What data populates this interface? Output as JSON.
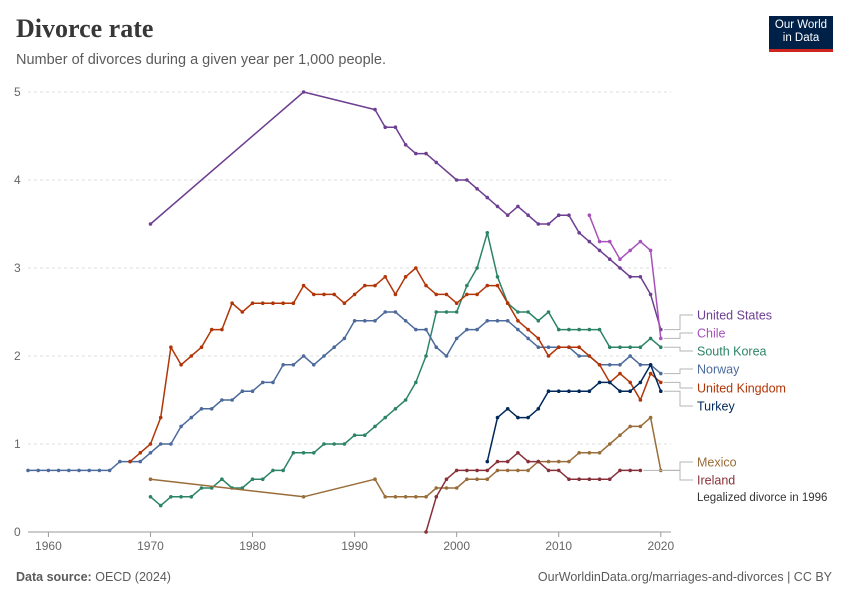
{
  "header": {
    "title": "Divorce rate",
    "subtitle": "Number of divorces during a given year per 1,000 people."
  },
  "logo": {
    "line1": "Our World",
    "line2": "in Data"
  },
  "footer": {
    "source_label": "Data source:",
    "source_value": "OECD (2024)",
    "link": "OurWorldinData.org/marriages-and-divorces | CC BY"
  },
  "chart_data": {
    "type": "line",
    "title": "Divorce rate",
    "subtitle": "Number of divorces during a given year per 1,000 people.",
    "xlim": [
      1958,
      2021
    ],
    "ylim": [
      0,
      5
    ],
    "xticks": [
      1960,
      1970,
      1980,
      1990,
      2000,
      2010,
      2020
    ],
    "yticks": [
      0,
      1,
      2,
      3,
      4,
      5
    ],
    "grid": true,
    "series": [
      {
        "name": "United States",
        "color": "#6d3e91",
        "points": [
          [
            1970,
            3.5
          ],
          [
            1985,
            5.0
          ],
          [
            1992,
            4.8
          ],
          [
            1993,
            4.6
          ],
          [
            1994,
            4.6
          ],
          [
            1995,
            4.4
          ],
          [
            1996,
            4.3
          ],
          [
            1997,
            4.3
          ],
          [
            1998,
            4.2
          ],
          [
            2000,
            4.0
          ],
          [
            2001,
            4.0
          ],
          [
            2002,
            3.9
          ],
          [
            2003,
            3.8
          ],
          [
            2004,
            3.7
          ],
          [
            2005,
            3.6
          ],
          [
            2006,
            3.7
          ],
          [
            2007,
            3.6
          ],
          [
            2008,
            3.5
          ],
          [
            2009,
            3.5
          ],
          [
            2010,
            3.6
          ],
          [
            2011,
            3.6
          ],
          [
            2012,
            3.4
          ],
          [
            2013,
            3.3
          ],
          [
            2014,
            3.2
          ],
          [
            2015,
            3.1
          ],
          [
            2016,
            3.0
          ],
          [
            2017,
            2.9
          ],
          [
            2018,
            2.9
          ],
          [
            2019,
            2.7
          ],
          [
            2020,
            2.3
          ]
        ]
      },
      {
        "name": "Chile",
        "color": "#a652ba",
        "points": [
          [
            2013,
            3.6
          ],
          [
            2014,
            3.3
          ],
          [
            2015,
            3.3
          ],
          [
            2016,
            3.1
          ],
          [
            2017,
            3.2
          ],
          [
            2018,
            3.3
          ],
          [
            2019,
            3.2
          ],
          [
            2020,
            2.2
          ]
        ]
      },
      {
        "name": "South Korea",
        "color": "#2c8465",
        "points": [
          [
            1970,
            0.4
          ],
          [
            1971,
            0.3
          ],
          [
            1972,
            0.4
          ],
          [
            1973,
            0.4
          ],
          [
            1974,
            0.4
          ],
          [
            1975,
            0.5
          ],
          [
            1976,
            0.5
          ],
          [
            1977,
            0.6
          ],
          [
            1978,
            0.5
          ],
          [
            1979,
            0.5
          ],
          [
            1980,
            0.6
          ],
          [
            1981,
            0.6
          ],
          [
            1982,
            0.7
          ],
          [
            1983,
            0.7
          ],
          [
            1984,
            0.9
          ],
          [
            1985,
            0.9
          ],
          [
            1986,
            0.9
          ],
          [
            1987,
            1.0
          ],
          [
            1988,
            1.0
          ],
          [
            1989,
            1.0
          ],
          [
            1990,
            1.1
          ],
          [
            1991,
            1.1
          ],
          [
            1992,
            1.2
          ],
          [
            1993,
            1.3
          ],
          [
            1994,
            1.4
          ],
          [
            1995,
            1.5
          ],
          [
            1996,
            1.7
          ],
          [
            1997,
            2.0
          ],
          [
            1998,
            2.5
          ],
          [
            1999,
            2.5
          ],
          [
            2000,
            2.5
          ],
          [
            2001,
            2.8
          ],
          [
            2002,
            3.0
          ],
          [
            2003,
            3.4
          ],
          [
            2004,
            2.9
          ],
          [
            2005,
            2.6
          ],
          [
            2006,
            2.5
          ],
          [
            2007,
            2.5
          ],
          [
            2008,
            2.4
          ],
          [
            2009,
            2.5
          ],
          [
            2010,
            2.3
          ],
          [
            2011,
            2.3
          ],
          [
            2012,
            2.3
          ],
          [
            2013,
            2.3
          ],
          [
            2014,
            2.3
          ],
          [
            2015,
            2.1
          ],
          [
            2016,
            2.1
          ],
          [
            2017,
            2.1
          ],
          [
            2018,
            2.1
          ],
          [
            2019,
            2.2
          ],
          [
            2020,
            2.1
          ]
        ]
      },
      {
        "name": "Norway",
        "color": "#4c6a9c",
        "points": [
          [
            1958,
            0.7
          ],
          [
            1959,
            0.7
          ],
          [
            1960,
            0.7
          ],
          [
            1961,
            0.7
          ],
          [
            1962,
            0.7
          ],
          [
            1963,
            0.7
          ],
          [
            1964,
            0.7
          ],
          [
            1965,
            0.7
          ],
          [
            1966,
            0.7
          ],
          [
            1967,
            0.8
          ],
          [
            1968,
            0.8
          ],
          [
            1969,
            0.8
          ],
          [
            1970,
            0.9
          ],
          [
            1971,
            1.0
          ],
          [
            1972,
            1.0
          ],
          [
            1973,
            1.2
          ],
          [
            1974,
            1.3
          ],
          [
            1975,
            1.4
          ],
          [
            1976,
            1.4
          ],
          [
            1977,
            1.5
          ],
          [
            1978,
            1.5
          ],
          [
            1979,
            1.6
          ],
          [
            1980,
            1.6
          ],
          [
            1981,
            1.7
          ],
          [
            1982,
            1.7
          ],
          [
            1983,
            1.9
          ],
          [
            1984,
            1.9
          ],
          [
            1985,
            2.0
          ],
          [
            1986,
            1.9
          ],
          [
            1987,
            2.0
          ],
          [
            1988,
            2.1
          ],
          [
            1989,
            2.2
          ],
          [
            1990,
            2.4
          ],
          [
            1991,
            2.4
          ],
          [
            1992,
            2.4
          ],
          [
            1993,
            2.5
          ],
          [
            1994,
            2.5
          ],
          [
            1995,
            2.4
          ],
          [
            1996,
            2.3
          ],
          [
            1997,
            2.3
          ],
          [
            1998,
            2.1
          ],
          [
            1999,
            2.0
          ],
          [
            2000,
            2.2
          ],
          [
            2001,
            2.3
          ],
          [
            2002,
            2.3
          ],
          [
            2003,
            2.4
          ],
          [
            2004,
            2.4
          ],
          [
            2005,
            2.4
          ],
          [
            2006,
            2.3
          ],
          [
            2007,
            2.2
          ],
          [
            2008,
            2.1
          ],
          [
            2009,
            2.1
          ],
          [
            2010,
            2.1
          ],
          [
            2011,
            2.1
          ],
          [
            2012,
            2.0
          ],
          [
            2013,
            2.0
          ],
          [
            2014,
            1.9
          ],
          [
            2015,
            1.9
          ],
          [
            2016,
            1.9
          ],
          [
            2017,
            2.0
          ],
          [
            2018,
            1.9
          ],
          [
            2019,
            1.9
          ],
          [
            2020,
            1.8
          ]
        ]
      },
      {
        "name": "United Kingdom",
        "color": "#b13507",
        "points": [
          [
            1968,
            0.8
          ],
          [
            1969,
            0.9
          ],
          [
            1970,
            1.0
          ],
          [
            1971,
            1.3
          ],
          [
            1972,
            2.1
          ],
          [
            1973,
            1.9
          ],
          [
            1974,
            2.0
          ],
          [
            1975,
            2.1
          ],
          [
            1976,
            2.3
          ],
          [
            1977,
            2.3
          ],
          [
            1978,
            2.6
          ],
          [
            1979,
            2.5
          ],
          [
            1980,
            2.6
          ],
          [
            1981,
            2.6
          ],
          [
            1982,
            2.6
          ],
          [
            1983,
            2.6
          ],
          [
            1984,
            2.6
          ],
          [
            1985,
            2.8
          ],
          [
            1986,
            2.7
          ],
          [
            1987,
            2.7
          ],
          [
            1988,
            2.7
          ],
          [
            1989,
            2.6
          ],
          [
            1990,
            2.7
          ],
          [
            1991,
            2.8
          ],
          [
            1992,
            2.8
          ],
          [
            1993,
            2.9
          ],
          [
            1994,
            2.7
          ],
          [
            1995,
            2.9
          ],
          [
            1996,
            3.0
          ],
          [
            1997,
            2.8
          ],
          [
            1998,
            2.7
          ],
          [
            1999,
            2.7
          ],
          [
            2000,
            2.6
          ],
          [
            2001,
            2.7
          ],
          [
            2002,
            2.7
          ],
          [
            2003,
            2.8
          ],
          [
            2004,
            2.8
          ],
          [
            2005,
            2.6
          ],
          [
            2006,
            2.4
          ],
          [
            2007,
            2.3
          ],
          [
            2008,
            2.2
          ],
          [
            2009,
            2.0
          ],
          [
            2010,
            2.1
          ],
          [
            2011,
            2.1
          ],
          [
            2012,
            2.1
          ],
          [
            2013,
            2.0
          ],
          [
            2014,
            1.9
          ],
          [
            2015,
            1.7
          ],
          [
            2016,
            1.8
          ],
          [
            2017,
            1.7
          ],
          [
            2018,
            1.5
          ],
          [
            2019,
            1.8
          ],
          [
            2020,
            1.7
          ]
        ]
      },
      {
        "name": "Turkey",
        "color": "#00295b",
        "points": [
          [
            2003,
            0.8
          ],
          [
            2004,
            1.3
          ],
          [
            2005,
            1.4
          ],
          [
            2006,
            1.3
          ],
          [
            2007,
            1.3
          ],
          [
            2008,
            1.4
          ],
          [
            2009,
            1.6
          ],
          [
            2010,
            1.6
          ],
          [
            2011,
            1.6
          ],
          [
            2012,
            1.6
          ],
          [
            2013,
            1.6
          ],
          [
            2014,
            1.7
          ],
          [
            2015,
            1.7
          ],
          [
            2016,
            1.6
          ],
          [
            2017,
            1.6
          ],
          [
            2018,
            1.7
          ],
          [
            2019,
            1.9
          ],
          [
            2020,
            1.6
          ]
        ]
      },
      {
        "name": "Mexico",
        "color": "#996d39",
        "points": [
          [
            1970,
            0.6
          ],
          [
            1985,
            0.4
          ],
          [
            1992,
            0.6
          ],
          [
            1993,
            0.4
          ],
          [
            1994,
            0.4
          ],
          [
            1995,
            0.4
          ],
          [
            1996,
            0.4
          ],
          [
            1997,
            0.4
          ],
          [
            1998,
            0.5
          ],
          [
            1999,
            0.5
          ],
          [
            2000,
            0.5
          ],
          [
            2001,
            0.6
          ],
          [
            2002,
            0.6
          ],
          [
            2003,
            0.6
          ],
          [
            2004,
            0.7
          ],
          [
            2005,
            0.7
          ],
          [
            2006,
            0.7
          ],
          [
            2007,
            0.7
          ],
          [
            2008,
            0.8
          ],
          [
            2009,
            0.8
          ],
          [
            2010,
            0.8
          ],
          [
            2011,
            0.8
          ],
          [
            2012,
            0.9
          ],
          [
            2013,
            0.9
          ],
          [
            2014,
            0.9
          ],
          [
            2015,
            1.0
          ],
          [
            2016,
            1.1
          ],
          [
            2017,
            1.2
          ],
          [
            2018,
            1.2
          ],
          [
            2019,
            1.3
          ],
          [
            2020,
            0.7
          ]
        ]
      },
      {
        "name": "Ireland",
        "color": "#883039",
        "points": [
          [
            1997,
            0.0
          ],
          [
            1998,
            0.4
          ],
          [
            1999,
            0.6
          ],
          [
            2000,
            0.7
          ],
          [
            2001,
            0.7
          ],
          [
            2002,
            0.7
          ],
          [
            2003,
            0.7
          ],
          [
            2004,
            0.8
          ],
          [
            2005,
            0.8
          ],
          [
            2006,
            0.9
          ],
          [
            2007,
            0.8
          ],
          [
            2008,
            0.8
          ],
          [
            2009,
            0.7
          ],
          [
            2010,
            0.7
          ],
          [
            2011,
            0.6
          ],
          [
            2012,
            0.6
          ],
          [
            2013,
            0.6
          ],
          [
            2014,
            0.6
          ],
          [
            2015,
            0.6
          ],
          [
            2016,
            0.7
          ],
          [
            2017,
            0.7
          ],
          [
            2018,
            0.7
          ]
        ]
      }
    ],
    "annotations": [
      {
        "series": "Ireland",
        "text": "Legalized divorce in 1996"
      }
    ],
    "legend_placement": "right, labels at line ends"
  }
}
